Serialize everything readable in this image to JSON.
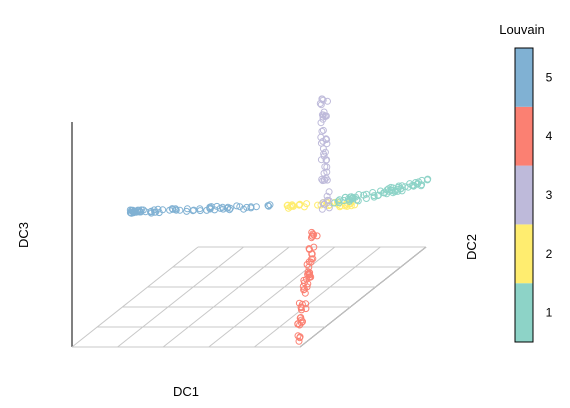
{
  "chart_data": {
    "type": "scatter",
    "projection": "3d",
    "xlabel": "DC1",
    "ylabel": "DC2",
    "zlabel": "DC3",
    "grid": true,
    "legend": {
      "title": "Louvain",
      "type": "colorbar",
      "placement": "right",
      "levels": [
        "1",
        "2",
        "3",
        "4",
        "5"
      ],
      "colors": [
        "#8DD3C7",
        "#FFED6F",
        "#BEBADA",
        "#FB8072",
        "#80B1D3"
      ]
    },
    "clusters": [
      {
        "label": "1",
        "color": "#8DD3C7",
        "description": "arm toward +DC2"
      },
      {
        "label": "2",
        "color": "#FFED6F",
        "description": "bridge near origin"
      },
      {
        "label": "3",
        "color": "#BEBADA",
        "description": "arm toward +DC3"
      },
      {
        "label": "4",
        "color": "#FB8072",
        "description": "arm toward -DC3"
      },
      {
        "label": "5",
        "color": "#80B1D3",
        "description": "arm toward -DC1"
      }
    ]
  }
}
